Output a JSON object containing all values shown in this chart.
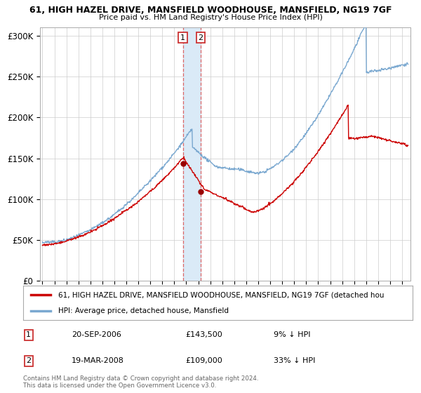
{
  "title1": "61, HIGH HAZEL DRIVE, MANSFIELD WOODHOUSE, MANSFIELD, NG19 7GF",
  "title2": "Price paid vs. HM Land Registry's House Price Index (HPI)",
  "ylabel_ticks": [
    "£0",
    "£50K",
    "£100K",
    "£150K",
    "£200K",
    "£250K",
    "£300K"
  ],
  "ytick_vals": [
    0,
    50000,
    100000,
    150000,
    200000,
    250000,
    300000
  ],
  "ylim": [
    0,
    310000
  ],
  "xlim_start": 1994.8,
  "xlim_end": 2025.7,
  "transaction1": {
    "date_label": "20-SEP-2006",
    "date_x": 2006.72,
    "price": 143500,
    "pct": "9%",
    "label": "1"
  },
  "transaction2": {
    "date_label": "19-MAR-2008",
    "date_x": 2008.21,
    "price": 109000,
    "pct": "33%",
    "label": "2"
  },
  "legend_line1": "61, HIGH HAZEL DRIVE, MANSFIELD WOODHOUSE, MANSFIELD, NG19 7GF (detached hou",
  "legend_line2": "HPI: Average price, detached house, Mansfield",
  "footer1": "Contains HM Land Registry data © Crown copyright and database right 2024.",
  "footer2": "This data is licensed under the Open Government Licence v3.0.",
  "line_color_red": "#cc0000",
  "line_color_blue": "#7aa8d0",
  "bg_color": "#ffffff",
  "grid_color": "#cccccc",
  "shade_color": "#daeaf7"
}
